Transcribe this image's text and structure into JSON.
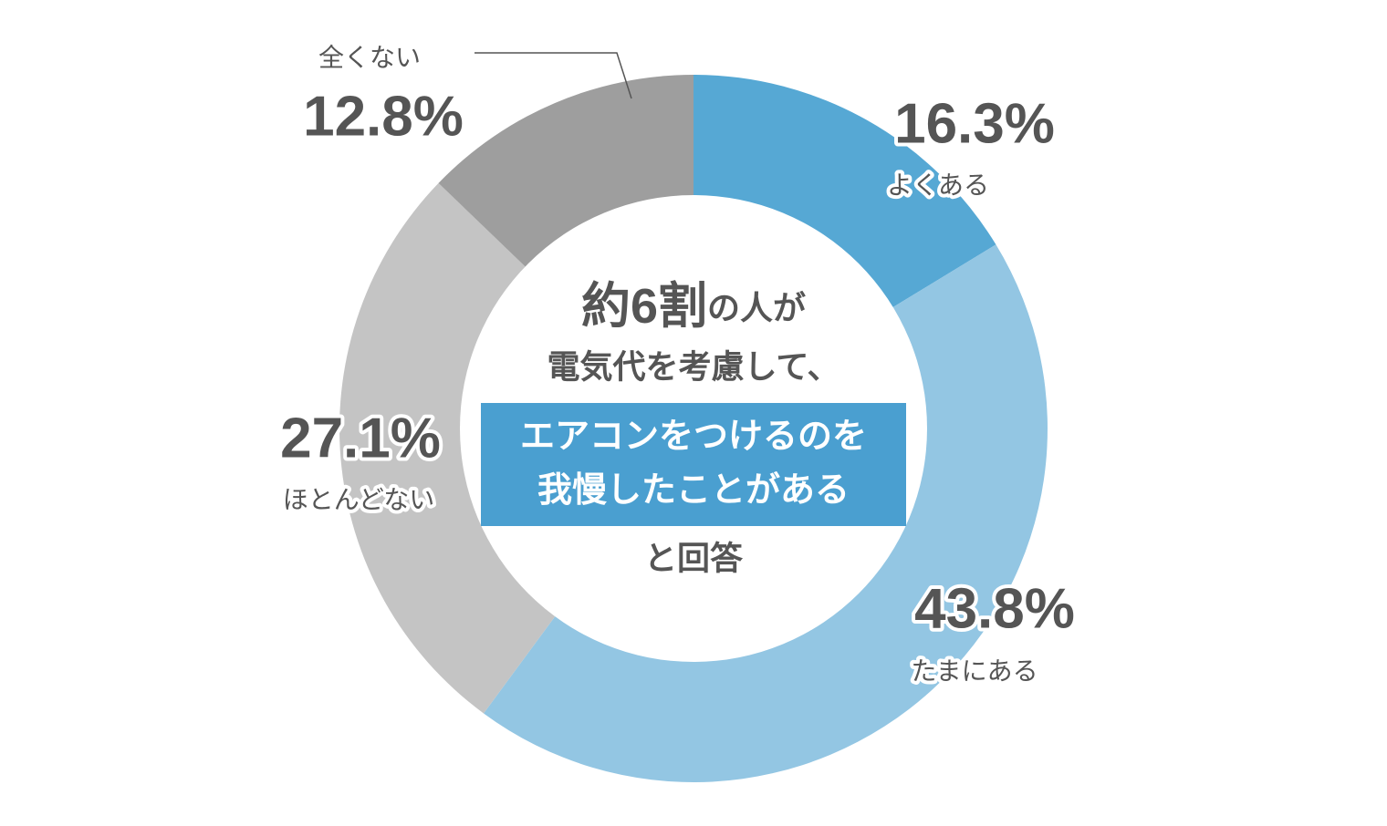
{
  "chart_data": {
    "type": "pie",
    "donut": true,
    "categories": [
      "よくある",
      "たまにある",
      "ほとんどない",
      "全くない"
    ],
    "values": [
      16.3,
      43.8,
      27.1,
      12.8
    ],
    "value_labels": [
      "16.3%",
      "43.8%",
      "27.1%",
      "12.8%"
    ],
    "colors": [
      "#56a8d4",
      "#93c6e3",
      "#c4c4c4",
      "#9e9e9e"
    ],
    "center_text": {
      "emphasis": "約6割",
      "lead": "の人が",
      "line2": "電気代を考慮して、",
      "highlight": [
        "エアコンをつけるのを",
        "我慢したことがある"
      ],
      "tail": "と回答"
    }
  }
}
